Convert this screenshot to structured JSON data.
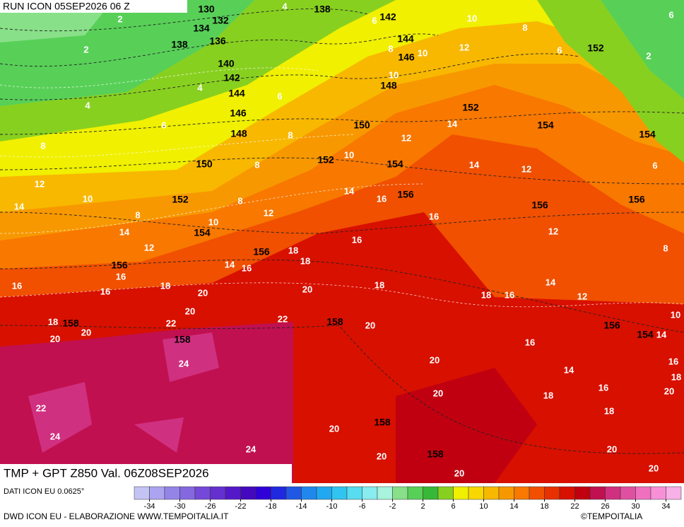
{
  "header": {
    "run": "RUN ICON 05SEP2026 06 Z",
    "field": "TMP + GPT Z850 Val. 06Z08SEP2026"
  },
  "footer": {
    "data_source": "DATI ICON EU 0.0625°",
    "credit": "DWD ICON EU - ELABORAZIONE WWW.TEMPOITALIA.IT",
    "copyright": "©TEMPOITALIA"
  },
  "height_labels": [
    130,
    138,
    142,
    132,
    134,
    136,
    138,
    144,
    146,
    152,
    140,
    142,
    148,
    144,
    152,
    146,
    154,
    148,
    150,
    154,
    152,
    150,
    154,
    152,
    156,
    156,
    156,
    154,
    156,
    156,
    158,
    158,
    156,
    154,
    158,
    158,
    158
  ],
  "temperature_labels": [
    4,
    2,
    6,
    10,
    8,
    6,
    8,
    10,
    12,
    6,
    2,
    2,
    10,
    4,
    6,
    4,
    6,
    8,
    14,
    12,
    8,
    10,
    8,
    14,
    12,
    6,
    12,
    10,
    14,
    16,
    8,
    8,
    12,
    10,
    14,
    16,
    12,
    14,
    16,
    12,
    18,
    18,
    14,
    16,
    8,
    16,
    16,
    18,
    16,
    20,
    20,
    18,
    14,
    18,
    16,
    12,
    20,
    22,
    18,
    20,
    22,
    20,
    10,
    14,
    20,
    16,
    24,
    20,
    14,
    16,
    18,
    16,
    20,
    18,
    20,
    22,
    18,
    20,
    24,
    24,
    20,
    20,
    20,
    20
  ],
  "colorbar": {
    "lim": [
      -36,
      36
    ],
    "ticks": [
      -34,
      -30,
      -26,
      -22,
      -18,
      -14,
      -10,
      -6,
      -2,
      2,
      6,
      10,
      14,
      18,
      22,
      26,
      30,
      34
    ],
    "colors": [
      "#c4c4f4",
      "#aca4f0",
      "#9484e8",
      "#8468e0",
      "#7448d8",
      "#6430d0",
      "#5418c8",
      "#4408c0",
      "#3000d8",
      "#2028e0",
      "#2058e4",
      "#2088ec",
      "#20a8f0",
      "#30c4f0",
      "#58dcf0",
      "#88ecf0",
      "#a8f4dc",
      "#88e088",
      "#58d058",
      "#38b838",
      "#88d020",
      "#f0f000",
      "#f8d800",
      "#f8b800",
      "#f89800",
      "#f87800",
      "#f05000",
      "#e83000",
      "#d81000",
      "#c00010",
      "#c01050",
      "#d03080",
      "#e050a0",
      "#f070c0",
      "#f890d8",
      "#f8b0e8"
    ]
  }
}
